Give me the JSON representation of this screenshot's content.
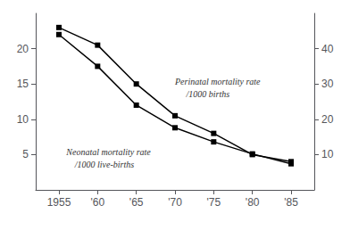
{
  "chart_data": {
    "type": "line",
    "x": [
      1955,
      1960,
      1965,
      1970,
      1975,
      1980,
      1985
    ],
    "xlim": [
      1952,
      1988
    ],
    "xticks": [
      1955,
      {
        "value": 1960,
        "label": "'60"
      },
      {
        "value": 1965,
        "label": "'65"
      },
      {
        "value": 1970,
        "label": "'70"
      },
      {
        "value": 1975,
        "label": "'75"
      },
      {
        "value": 1980,
        "label": "'80"
      },
      {
        "value": 1985,
        "label": "'85"
      }
    ],
    "ylim": [
      0,
      25
    ],
    "yticks": [
      5,
      10,
      15,
      20
    ],
    "y2lim": [
      0,
      50
    ],
    "y2ticks": [
      10,
      20,
      30,
      40
    ],
    "grid": false,
    "series": [
      {
        "color": "#000000",
        "marker": "square",
        "values": [
          23.0,
          20.5,
          15.0,
          10.5,
          8.0,
          5.0,
          4.0
        ]
      },
      {
        "color": "#000000",
        "marker": "square",
        "values": [
          22.0,
          17.5,
          12.0,
          8.8,
          6.8,
          5.1,
          3.7
        ]
      }
    ],
    "annotations": [
      "Neonatal mortality rate",
      "/1000 live-births",
      "Perinatal mortality rate",
      "/1000 births"
    ]
  }
}
